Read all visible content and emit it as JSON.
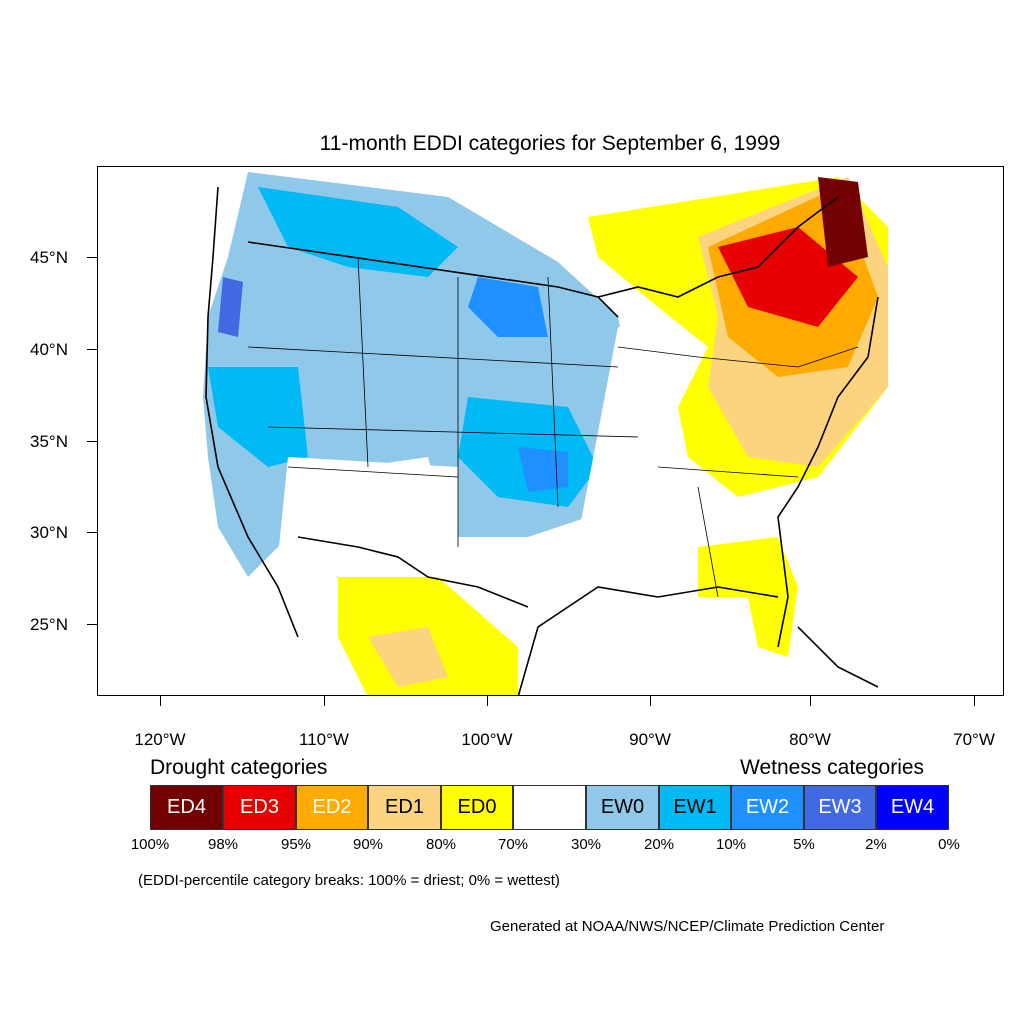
{
  "title": "11-month EDDI categories for September 6, 1999",
  "lat_labels": [
    "45°N",
    "40°N",
    "35°N",
    "30°N",
    "25°N"
  ],
  "lon_labels": [
    "120°W",
    "110°W",
    "100°W",
    "90°W",
    "80°W",
    "70°W"
  ],
  "legend": {
    "drought_title": "Drought categories",
    "wetness_title": "Wetness categories",
    "categories": [
      {
        "label": "ED4",
        "color": "#730000",
        "text_color": "#ffffff"
      },
      {
        "label": "ED3",
        "color": "#e60000",
        "text_color": "#ffffff"
      },
      {
        "label": "ED2",
        "color": "#ffaa00",
        "text_color": "#ffffff"
      },
      {
        "label": "ED1",
        "color": "#fcd37f",
        "text_color": "#000000"
      },
      {
        "label": "ED0",
        "color": "#ffff00",
        "text_color": "#000000"
      },
      {
        "label": "",
        "color": "#ffffff",
        "text_color": "#000000"
      },
      {
        "label": "EW0",
        "color": "#90c8ea",
        "text_color": "#000000"
      },
      {
        "label": "EW1",
        "color": "#00b9f5",
        "text_color": "#000000"
      },
      {
        "label": "EW2",
        "color": "#1e90ff",
        "text_color": "#ffffff"
      },
      {
        "label": "EW3",
        "color": "#4169e1",
        "text_color": "#ffffff"
      },
      {
        "label": "EW4",
        "color": "#0000ff",
        "text_color": "#ffffff"
      }
    ],
    "breaks": [
      "100%",
      "98%",
      "95%",
      "90%",
      "80%",
      "70%",
      "30%",
      "20%",
      "10%",
      "5%",
      "2%",
      "0%"
    ]
  },
  "note": "(EDDI-percentile category breaks: 100% = driest; 0% = wettest)",
  "credit": "Generated at NOAA/NWS/NCEP/Climate Prediction Center"
}
